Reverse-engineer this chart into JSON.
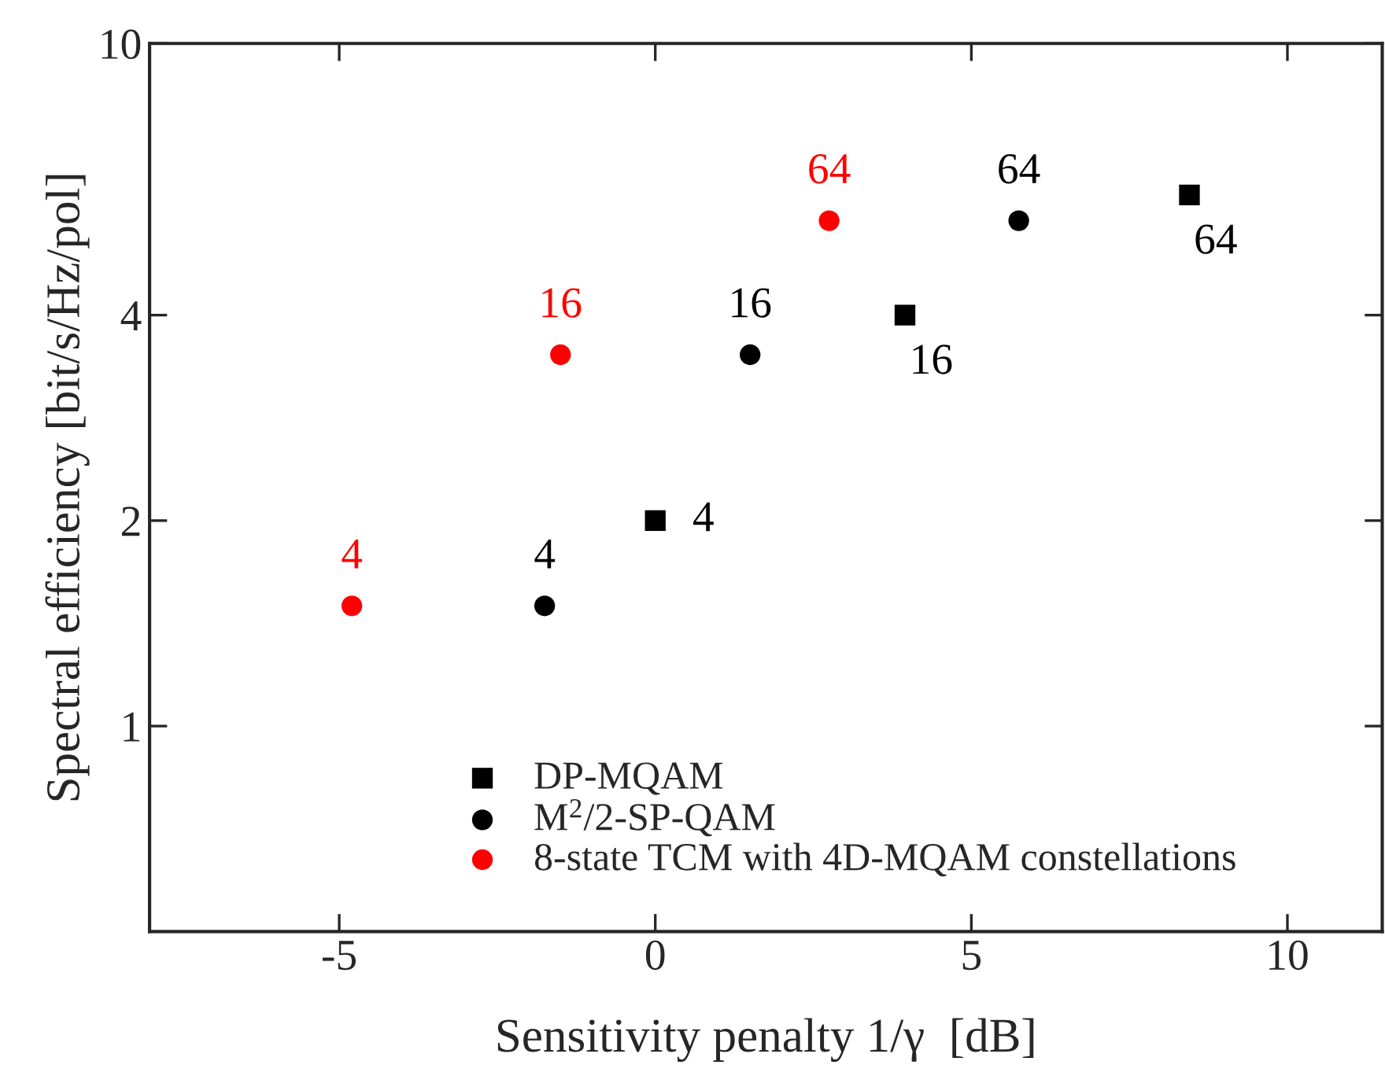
{
  "chart_data": {
    "type": "scatter",
    "xlabel": "Sensitivity penalty 1/γ  [dB]",
    "ylabel": "Spectral efficiency [bit/s/Hz/pol]",
    "log": "y",
    "xlim": [
      -8,
      11.5
    ],
    "ylim": [
      0.5,
      10
    ],
    "xticks": [
      -5,
      0,
      5,
      10
    ],
    "yticks": [
      1,
      2,
      4,
      10
    ],
    "grid": false,
    "legend": "bottom",
    "series": [
      {
        "name": "DP-MQAM",
        "color": "#000000",
        "marker": "square",
        "x": [
          0,
          3.95,
          8.45
        ],
        "values": [
          2,
          4,
          6
        ]
      },
      {
        "name": "M$^{2}$/2-SP-QAM",
        "color": "#000000",
        "marker": "circle",
        "x": [
          -1.75,
          1.5,
          5.75
        ],
        "values": [
          1.5,
          3.5,
          5.5
        ]
      },
      {
        "name": "8-state TCM with 4D-MQAM constellations",
        "color": "#ff0000",
        "marker": "circle",
        "x": [
          -4.8,
          -1.5,
          2.75
        ],
        "values": [
          1.5,
          3.5,
          5.5
        ]
      }
    ],
    "annotations": [
      {
        "text": "4",
        "x": 0,
        "y": 2
      },
      {
        "text": "16",
        "x": 3.95,
        "y": 4
      },
      {
        "text": "64",
        "x": 8.45,
        "y": 6
      },
      {
        "text": "4",
        "x": -1.75,
        "y": 1.5
      },
      {
        "text": "16",
        "x": 1.5,
        "y": 3.5
      },
      {
        "text": "64",
        "x": 5.75,
        "y": 5.5
      },
      {
        "text": "4",
        "x": -4.8,
        "y": 1.5
      },
      {
        "text": "16",
        "x": -1.5,
        "y": 3.5
      },
      {
        "text": "64",
        "x": 2.75,
        "y": 5.5
      }
    ]
  }
}
